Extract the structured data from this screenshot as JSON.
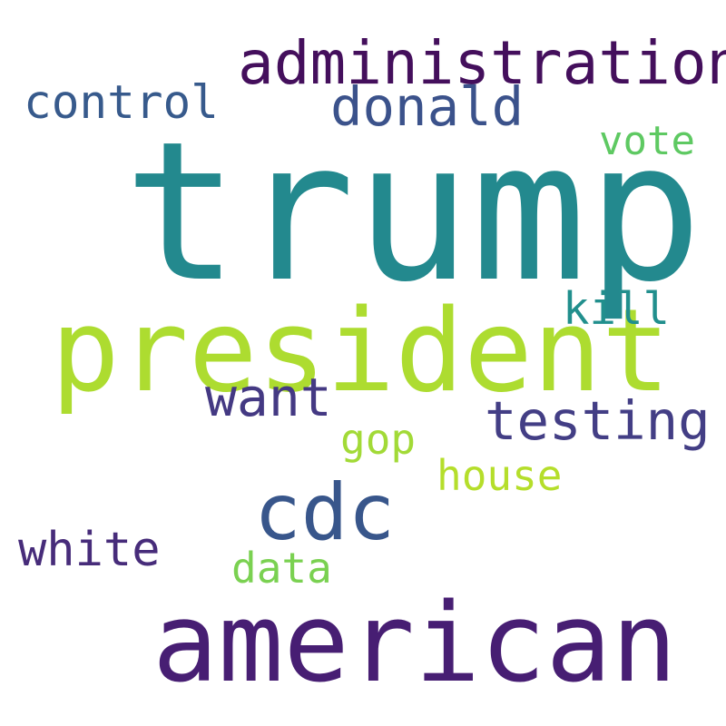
{
  "word_cloud": {
    "background_color": "#ffffff",
    "words": [
      {
        "key": "trump",
        "text": "trump",
        "color": "#23898e"
      },
      {
        "key": "president",
        "text": "president",
        "color": "#addc30"
      },
      {
        "key": "american",
        "text": "american",
        "color": "#471e73"
      },
      {
        "key": "administration",
        "text": "administration",
        "color": "#440f5c"
      },
      {
        "key": "cdc",
        "text": "cdc",
        "color": "#38568b"
      },
      {
        "key": "donald",
        "text": "donald",
        "color": "#3b528b"
      },
      {
        "key": "testing",
        "text": "testing",
        "color": "#433e85"
      },
      {
        "key": "want",
        "text": "want",
        "color": "#443983"
      },
      {
        "key": "control",
        "text": "control",
        "color": "#375a8c"
      },
      {
        "key": "white",
        "text": "white",
        "color": "#472c7a"
      },
      {
        "key": "kill",
        "text": "kill",
        "color": "#218f8d"
      },
      {
        "key": "house",
        "text": "house",
        "color": "#b5de2b"
      },
      {
        "key": "gop",
        "text": "gop",
        "color": "#a2da37"
      },
      {
        "key": "data",
        "text": "data",
        "color": "#7ad151"
      },
      {
        "key": "vote",
        "text": "vote",
        "color": "#5ec962"
      }
    ]
  }
}
